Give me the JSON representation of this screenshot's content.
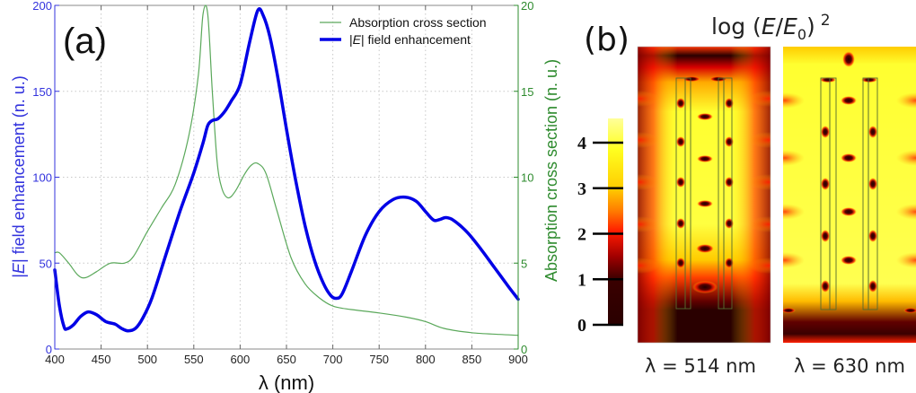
{
  "chart_data": [
    {
      "type": "line",
      "panel_label": "(a)",
      "title": "",
      "xlabel": "λ (nm)",
      "ylabel_left": "|E| field enhancement (n. u.)",
      "ylabel_left_parts": {
        "pre": "|",
        "italic": "E",
        "post": "| field enhancement (n. u.)"
      },
      "ylabel_right": "Absorption cross section (n. u.)",
      "xlim": [
        400,
        900
      ],
      "ylim_left": [
        0,
        200
      ],
      "ylim_right": [
        0,
        20
      ],
      "xticks": [
        400,
        450,
        500,
        550,
        600,
        650,
        700,
        750,
        800,
        850,
        900
      ],
      "yticks_left": [
        0,
        50,
        100,
        150,
        200
      ],
      "yticks_right": [
        0,
        5,
        10,
        15,
        20
      ],
      "grid": true,
      "legend_position": "top-right",
      "colors": {
        "left_axis": "#3333dd",
        "right_axis": "#2e8b2e",
        "field": "#0000e6",
        "absorption": "#5aa85a",
        "frame": "#888888",
        "grid": "#c8c8c8"
      },
      "series": [
        {
          "name": "Absorption cross section",
          "axis": "right",
          "x": [
            400,
            405,
            415,
            425,
            433,
            445,
            460,
            475,
            485,
            500,
            515,
            530,
            545,
            555,
            560,
            565,
            570,
            575,
            580,
            587,
            595,
            605,
            612,
            619,
            628,
            640,
            655,
            670,
            685,
            700,
            720,
            750,
            780,
            800,
            820,
            850,
            880,
            900
          ],
          "values": [
            5.6,
            5.6,
            5.0,
            4.3,
            4.15,
            4.5,
            5.0,
            5.0,
            5.4,
            6.85,
            8.2,
            9.6,
            12.5,
            16.0,
            19.5,
            19.5,
            15.0,
            11.0,
            9.4,
            8.8,
            9.2,
            10.2,
            10.7,
            10.8,
            10.2,
            8.0,
            5.3,
            3.8,
            3.0,
            2.5,
            2.3,
            2.1,
            1.85,
            1.6,
            1.2,
            0.95,
            0.85,
            0.8
          ]
        },
        {
          "name": "|E| field enhancement",
          "name_parts": {
            "pre": "|",
            "italic": "E",
            "post": "| field enhancement"
          },
          "axis": "left",
          "x": [
            400,
            405,
            410,
            413,
            420,
            428,
            436,
            445,
            455,
            465,
            472,
            479,
            487,
            495,
            505,
            520,
            535,
            550,
            560,
            565,
            570,
            576,
            583,
            590,
            600,
            610,
            619,
            625,
            632,
            640,
            650,
            660,
            670,
            680,
            690,
            698,
            704,
            710,
            720,
            735,
            750,
            765,
            778,
            790,
            800,
            809,
            816,
            822,
            830,
            845,
            860,
            875,
            890,
            900
          ],
          "values": [
            46,
            25,
            13,
            11.7,
            14,
            19,
            21.6,
            20,
            16,
            14.5,
            12,
            10.6,
            12,
            18,
            30,
            55,
            80,
            102.5,
            120,
            130,
            133,
            134,
            138,
            144,
            154,
            178,
            197,
            194,
            182,
            160,
            128,
            98,
            72,
            52,
            38,
            31,
            29.5,
            32,
            45,
            66,
            80,
            87,
            88.4,
            86,
            80,
            75,
            75.5,
            76.5,
            75,
            68,
            58,
            47,
            36,
            29
          ]
        }
      ]
    },
    {
      "type": "heatmap",
      "panel_label": "(b)",
      "title": "log (E/E0)^2",
      "title_parts": {
        "prefix": "log (",
        "E": "E",
        "slash": "/",
        "E0": "E",
        "sub": "0",
        "close": ")",
        "sup": "2"
      },
      "colorbar": {
        "ticks": [
          0,
          1,
          2,
          3,
          4
        ],
        "range": [
          0,
          4.5
        ],
        "colormap": "hot"
      },
      "panels": [
        {
          "caption": "λ = 514 nm",
          "wavelength_nm": 514
        },
        {
          "caption": "λ = 630 nm",
          "wavelength_nm": 630
        }
      ]
    }
  ]
}
